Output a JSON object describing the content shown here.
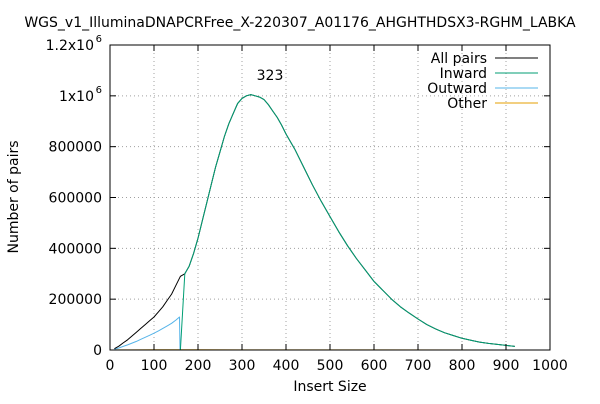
{
  "chart_data": {
    "type": "line",
    "title": "WGS_v1_IlluminaDNAPCRFree_X-220307_A01176_AHGHTHDSX3-RGHM_LABKA",
    "xlabel": "Insert Size",
    "ylabel": "Number of pairs",
    "xlim": [
      0,
      1000
    ],
    "ylim": [
      0,
      1200000
    ],
    "x_ticks": [
      {
        "v": 0,
        "label": "0"
      },
      {
        "v": 100,
        "label": "100"
      },
      {
        "v": 200,
        "label": "200"
      },
      {
        "v": 300,
        "label": "300"
      },
      {
        "v": 400,
        "label": "400"
      },
      {
        "v": 500,
        "label": "500"
      },
      {
        "v": 600,
        "label": "600"
      },
      {
        "v": 700,
        "label": "700"
      },
      {
        "v": 800,
        "label": "800"
      },
      {
        "v": 900,
        "label": "900"
      },
      {
        "v": 1000,
        "label": "1000"
      }
    ],
    "y_ticks": [
      {
        "v": 0,
        "label": "0"
      },
      {
        "v": 200000,
        "label": "200000"
      },
      {
        "v": 400000,
        "label": "400000"
      },
      {
        "v": 600000,
        "label": "600000"
      },
      {
        "v": 800000,
        "label": "800000"
      },
      {
        "v": 1000000,
        "label": "1x10",
        "sup": "6"
      },
      {
        "v": 1200000,
        "label": "1.2x10",
        "sup": "6"
      }
    ],
    "grid": true,
    "legend_position": "top-right",
    "peak_annotation": {
      "x": 323,
      "y": 1060000,
      "label": "323"
    },
    "series": [
      {
        "name": "All pairs",
        "color": "#000000",
        "x": [
          10,
          20,
          30,
          40,
          50,
          60,
          70,
          80,
          90,
          100,
          110,
          120,
          130,
          140,
          150,
          160,
          170,
          180,
          190,
          200,
          210,
          220,
          230,
          240,
          250,
          260,
          270,
          280,
          290,
          300,
          310,
          320,
          330,
          340,
          350,
          360,
          370,
          380,
          390,
          400,
          420,
          440,
          460,
          480,
          500,
          520,
          540,
          560,
          580,
          600,
          620,
          640,
          660,
          680,
          700,
          720,
          740,
          760,
          780,
          800,
          820,
          840,
          860,
          880,
          900,
          920
        ],
        "y": [
          5000,
          15000,
          28000,
          40000,
          55000,
          70000,
          85000,
          100000,
          115000,
          130000,
          150000,
          170000,
          195000,
          220000,
          255000,
          290000,
          300000,
          330000,
          380000,
          440000,
          510000,
          580000,
          650000,
          720000,
          780000,
          840000,
          890000,
          930000,
          970000,
          990000,
          1000000,
          1005000,
          1000000,
          995000,
          985000,
          965000,
          940000,
          915000,
          885000,
          850000,
          790000,
          720000,
          650000,
          585000,
          525000,
          465000,
          410000,
          360000,
          315000,
          270000,
          235000,
          200000,
          170000,
          145000,
          122000,
          100000,
          83000,
          68000,
          57000,
          46000,
          38000,
          31000,
          26000,
          22000,
          18000,
          14000
        ]
      },
      {
        "name": "Inward",
        "color": "#009e73",
        "x": [
          10,
          20,
          30,
          40,
          50,
          60,
          70,
          80,
          90,
          100,
          110,
          120,
          130,
          140,
          150,
          160,
          170,
          180,
          190,
          200,
          210,
          220,
          230,
          240,
          250,
          260,
          270,
          280,
          290,
          300,
          310,
          320,
          330,
          340,
          350,
          360,
          370,
          380,
          390,
          400,
          420,
          440,
          460,
          480,
          500,
          520,
          540,
          560,
          580,
          600,
          620,
          640,
          660,
          680,
          700,
          720,
          740,
          760,
          780,
          800,
          820,
          840,
          860,
          880,
          900,
          920
        ],
        "y": [
          0,
          0,
          0,
          0,
          0,
          0,
          0,
          0,
          0,
          0,
          0,
          0,
          0,
          0,
          0,
          0,
          300000,
          330000,
          380000,
          440000,
          510000,
          580000,
          650000,
          720000,
          780000,
          840000,
          890000,
          930000,
          970000,
          990000,
          1000000,
          1005000,
          1000000,
          995000,
          985000,
          965000,
          940000,
          915000,
          885000,
          850000,
          790000,
          720000,
          650000,
          585000,
          525000,
          465000,
          410000,
          360000,
          315000,
          270000,
          235000,
          200000,
          170000,
          145000,
          122000,
          100000,
          83000,
          68000,
          57000,
          46000,
          38000,
          31000,
          26000,
          22000,
          18000,
          14000
        ]
      },
      {
        "name": "Outward",
        "color": "#56b4e9",
        "x": [
          10,
          20,
          30,
          40,
          50,
          60,
          70,
          80,
          90,
          100,
          110,
          120,
          130,
          140,
          150,
          158,
          159,
          160,
          170
        ],
        "y": [
          3000,
          8000,
          14000,
          20000,
          27000,
          34000,
          42000,
          50000,
          58000,
          66000,
          75000,
          85000,
          95000,
          105000,
          118000,
          130000,
          0,
          0,
          0
        ]
      },
      {
        "name": "Other",
        "color": "#e69f00",
        "x": [
          10,
          50,
          100,
          150,
          200,
          300,
          500,
          900
        ],
        "y": [
          200,
          500,
          800,
          900,
          600,
          400,
          200,
          50
        ]
      }
    ]
  }
}
